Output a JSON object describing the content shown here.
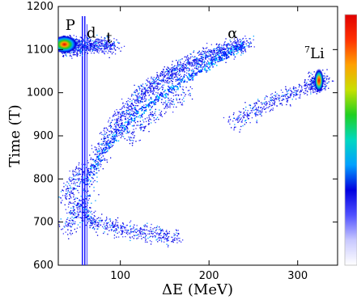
{
  "chart_data": {
    "type": "scatter",
    "title": "",
    "xlabel": "ΔE (MeV)",
    "ylabel": "Time (T)",
    "xlim": [
      30,
      345
    ],
    "ylim": [
      600,
      1200
    ],
    "x_ticks": [
      "100",
      "200",
      "300"
    ],
    "x_tick_values": [
      100,
      200,
      300
    ],
    "y_ticks": [
      "600",
      "700",
      "800",
      "900",
      "1000",
      "1100",
      "1200"
    ],
    "y_tick_values": [
      600,
      700,
      800,
      900,
      1000,
      1100,
      1200
    ],
    "grid": false,
    "colorbar": {
      "colors": [
        "#ffffff",
        "#c8c8ff",
        "#5050ff",
        "#0000e0",
        "#00a0ff",
        "#00d8c0",
        "#20d020",
        "#c8e000",
        "#ffa000",
        "#ff3000",
        "#e00000"
      ]
    },
    "annotations": [
      {
        "text": "P",
        "x": 38,
        "y": 1146
      },
      {
        "text": "d",
        "x": 62,
        "y": 1128
      },
      {
        "text": "t",
        "x": 84,
        "y": 1117
      },
      {
        "text": "α",
        "x": 221,
        "y": 1127
      },
      {
        "text": "Li",
        "sup": "7",
        "x": 314,
        "y": 1080
      }
    ],
    "series": [
      {
        "name": "",
        "points": [
          [
            35,
            1110
          ],
          [
            38,
            1115
          ],
          [
            42,
            1112
          ],
          [
            45,
            1108
          ],
          [
            48,
            1116
          ],
          [
            40,
            1120
          ],
          [
            36,
            1100
          ],
          [
            44,
            1102
          ],
          [
            50,
            1111
          ],
          [
            52,
            1105
          ],
          [
            55,
            1108
          ],
          [
            58,
            1112
          ],
          [
            62,
            1110
          ],
          [
            66,
            1111
          ],
          [
            70,
            1109
          ],
          [
            74,
            1112
          ],
          [
            78,
            1110
          ],
          [
            82,
            1111
          ],
          [
            86,
            1110
          ],
          [
            90,
            1109
          ],
          [
            60,
            760
          ],
          [
            65,
            800
          ],
          [
            70,
            830
          ],
          [
            75,
            855
          ],
          [
            80,
            875
          ],
          [
            85,
            895
          ],
          [
            90,
            912
          ],
          [
            95,
            928
          ],
          [
            100,
            942
          ],
          [
            105,
            955
          ],
          [
            110,
            967
          ],
          [
            115,
            978
          ],
          [
            120,
            988
          ],
          [
            125,
            998
          ],
          [
            130,
            1007
          ],
          [
            135,
            1015
          ],
          [
            140,
            1023
          ],
          [
            145,
            1030
          ],
          [
            150,
            1037
          ],
          [
            155,
            1043
          ],
          [
            160,
            1049
          ],
          [
            165,
            1055
          ],
          [
            170,
            1060
          ],
          [
            175,
            1065
          ],
          [
            180,
            1070
          ],
          [
            185,
            1075
          ],
          [
            190,
            1080
          ],
          [
            195,
            1084
          ],
          [
            200,
            1088
          ],
          [
            205,
            1092
          ],
          [
            210,
            1096
          ],
          [
            215,
            1099
          ],
          [
            220,
            1102
          ],
          [
            225,
            1105
          ],
          [
            230,
            1108
          ],
          [
            235,
            1110
          ],
          [
            240,
            1112
          ],
          [
            230,
            935
          ],
          [
            240,
            948
          ],
          [
            250,
            958
          ],
          [
            260,
            968
          ],
          [
            270,
            978
          ],
          [
            280,
            988
          ],
          [
            290,
            997
          ],
          [
            300,
            1005
          ],
          [
            310,
            1013
          ],
          [
            318,
            1020
          ],
          [
            323,
            1025
          ],
          [
            325,
            1030
          ],
          [
            324,
            1035
          ],
          [
            325,
            1020
          ],
          [
            324,
            1015
          ],
          [
            40,
            690
          ],
          [
            45,
            710
          ],
          [
            50,
            730
          ],
          [
            55,
            740
          ],
          [
            60,
            720
          ],
          [
            65,
            710
          ],
          [
            70,
            700
          ],
          [
            80,
            695
          ],
          [
            90,
            690
          ],
          [
            100,
            685
          ],
          [
            110,
            680
          ],
          [
            120,
            678
          ],
          [
            130,
            675
          ],
          [
            140,
            672
          ],
          [
            150,
            668
          ],
          [
            160,
            665
          ],
          [
            40,
            760
          ],
          [
            45,
            780
          ],
          [
            50,
            800
          ],
          [
            55,
            820
          ],
          [
            110,
            900
          ],
          [
            125,
            925
          ],
          [
            140,
            950
          ],
          [
            155,
            975
          ],
          [
            170,
            995
          ]
        ]
      }
    ]
  }
}
